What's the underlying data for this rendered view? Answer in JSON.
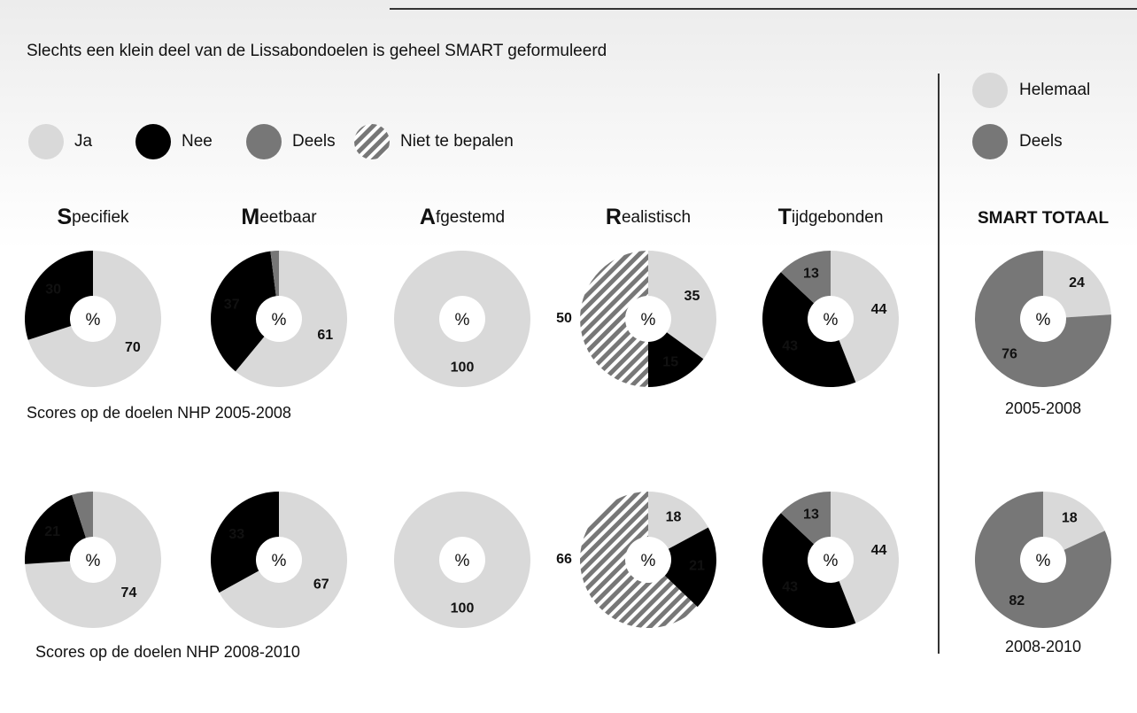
{
  "title": "Slechts een klein deel van de Lissabondoelen is geheel SMART geformuleerd",
  "legend": [
    {
      "name": "Ja",
      "color": "#d9d9d9"
    },
    {
      "name": "Nee",
      "color": "#000000"
    },
    {
      "name": "Deels",
      "color": "#777777"
    },
    {
      "name": "Niet te bepalen",
      "color": "hatch"
    }
  ],
  "total_legend": [
    {
      "name": "Helemaal",
      "color": "#d9d9d9"
    },
    {
      "name": "Deels",
      "color": "#777777"
    }
  ],
  "total_title": "SMART TOTAAL",
  "captions": [
    "Scores op de doelen NHP 2005-2008",
    "Scores op de doelen NHP 2008-2010"
  ],
  "total_captions": [
    "2005-2008",
    "2008-2010"
  ],
  "chart_data": [
    {
      "type": "pie",
      "title": "Specifiek",
      "center_label": "%",
      "categories": [
        "Ja",
        "Nee"
      ],
      "colors": [
        "#d9d9d9",
        "#000000"
      ],
      "values": [
        70,
        30
      ]
    },
    {
      "type": "pie",
      "title": "Meetbaar",
      "center_label": "%",
      "categories": [
        "Ja",
        "Nee",
        "Deels"
      ],
      "colors": [
        "#d9d9d9",
        "#000000",
        "#777777"
      ],
      "values": [
        61,
        37,
        2
      ],
      "value_labels": [
        "61",
        "37",
        null
      ]
    },
    {
      "type": "pie",
      "title": "Afgestemd",
      "center_label": "%",
      "categories": [
        "Ja"
      ],
      "colors": [
        "#d9d9d9"
      ],
      "values": [
        100
      ]
    },
    {
      "type": "pie",
      "title": "Realistisch",
      "center_label": "%",
      "categories": [
        "Ja",
        "Nee",
        "Niet te bepalen"
      ],
      "colors": [
        "#d9d9d9",
        "#000000",
        "hatch"
      ],
      "values": [
        35,
        15,
        50
      ]
    },
    {
      "type": "pie",
      "title": "Tijdgebonden",
      "center_label": "%",
      "categories": [
        "Ja",
        "Nee",
        "Deels"
      ],
      "colors": [
        "#d9d9d9",
        "#000000",
        "#777777"
      ],
      "values": [
        44,
        43,
        13
      ]
    },
    {
      "type": "pie",
      "center_label": "%",
      "categories": [
        "Helemaal",
        "Deels"
      ],
      "colors": [
        "#d9d9d9",
        "#777777"
      ],
      "values": [
        24,
        76
      ]
    },
    {
      "type": "pie",
      "center_label": "%",
      "categories": [
        "Ja",
        "Nee",
        "Deels"
      ],
      "colors": [
        "#d9d9d9",
        "#000000",
        "#777777"
      ],
      "values": [
        74,
        21,
        5
      ],
      "value_labels": [
        "74",
        "21",
        null
      ]
    },
    {
      "type": "pie",
      "center_label": "%",
      "categories": [
        "Ja",
        "Nee"
      ],
      "colors": [
        "#d9d9d9",
        "#000000"
      ],
      "values": [
        67,
        33
      ]
    },
    {
      "type": "pie",
      "center_label": "%",
      "categories": [
        "Ja"
      ],
      "colors": [
        "#d9d9d9"
      ],
      "values": [
        100
      ]
    },
    {
      "type": "pie",
      "center_label": "%",
      "categories": [
        "Ja",
        "Nee",
        "Niet te bepalen"
      ],
      "colors": [
        "#d9d9d9",
        "#000000",
        "hatch"
      ],
      "values": [
        18,
        21,
        66
      ]
    },
    {
      "type": "pie",
      "center_label": "%",
      "categories": [
        "Ja",
        "Nee",
        "Deels"
      ],
      "colors": [
        "#d9d9d9",
        "#000000",
        "#777777"
      ],
      "values": [
        44,
        43,
        13
      ]
    },
    {
      "type": "pie",
      "center_label": "%",
      "categories": [
        "Helemaal",
        "Deels"
      ],
      "colors": [
        "#d9d9d9",
        "#777777"
      ],
      "values": [
        18,
        82
      ]
    }
  ]
}
